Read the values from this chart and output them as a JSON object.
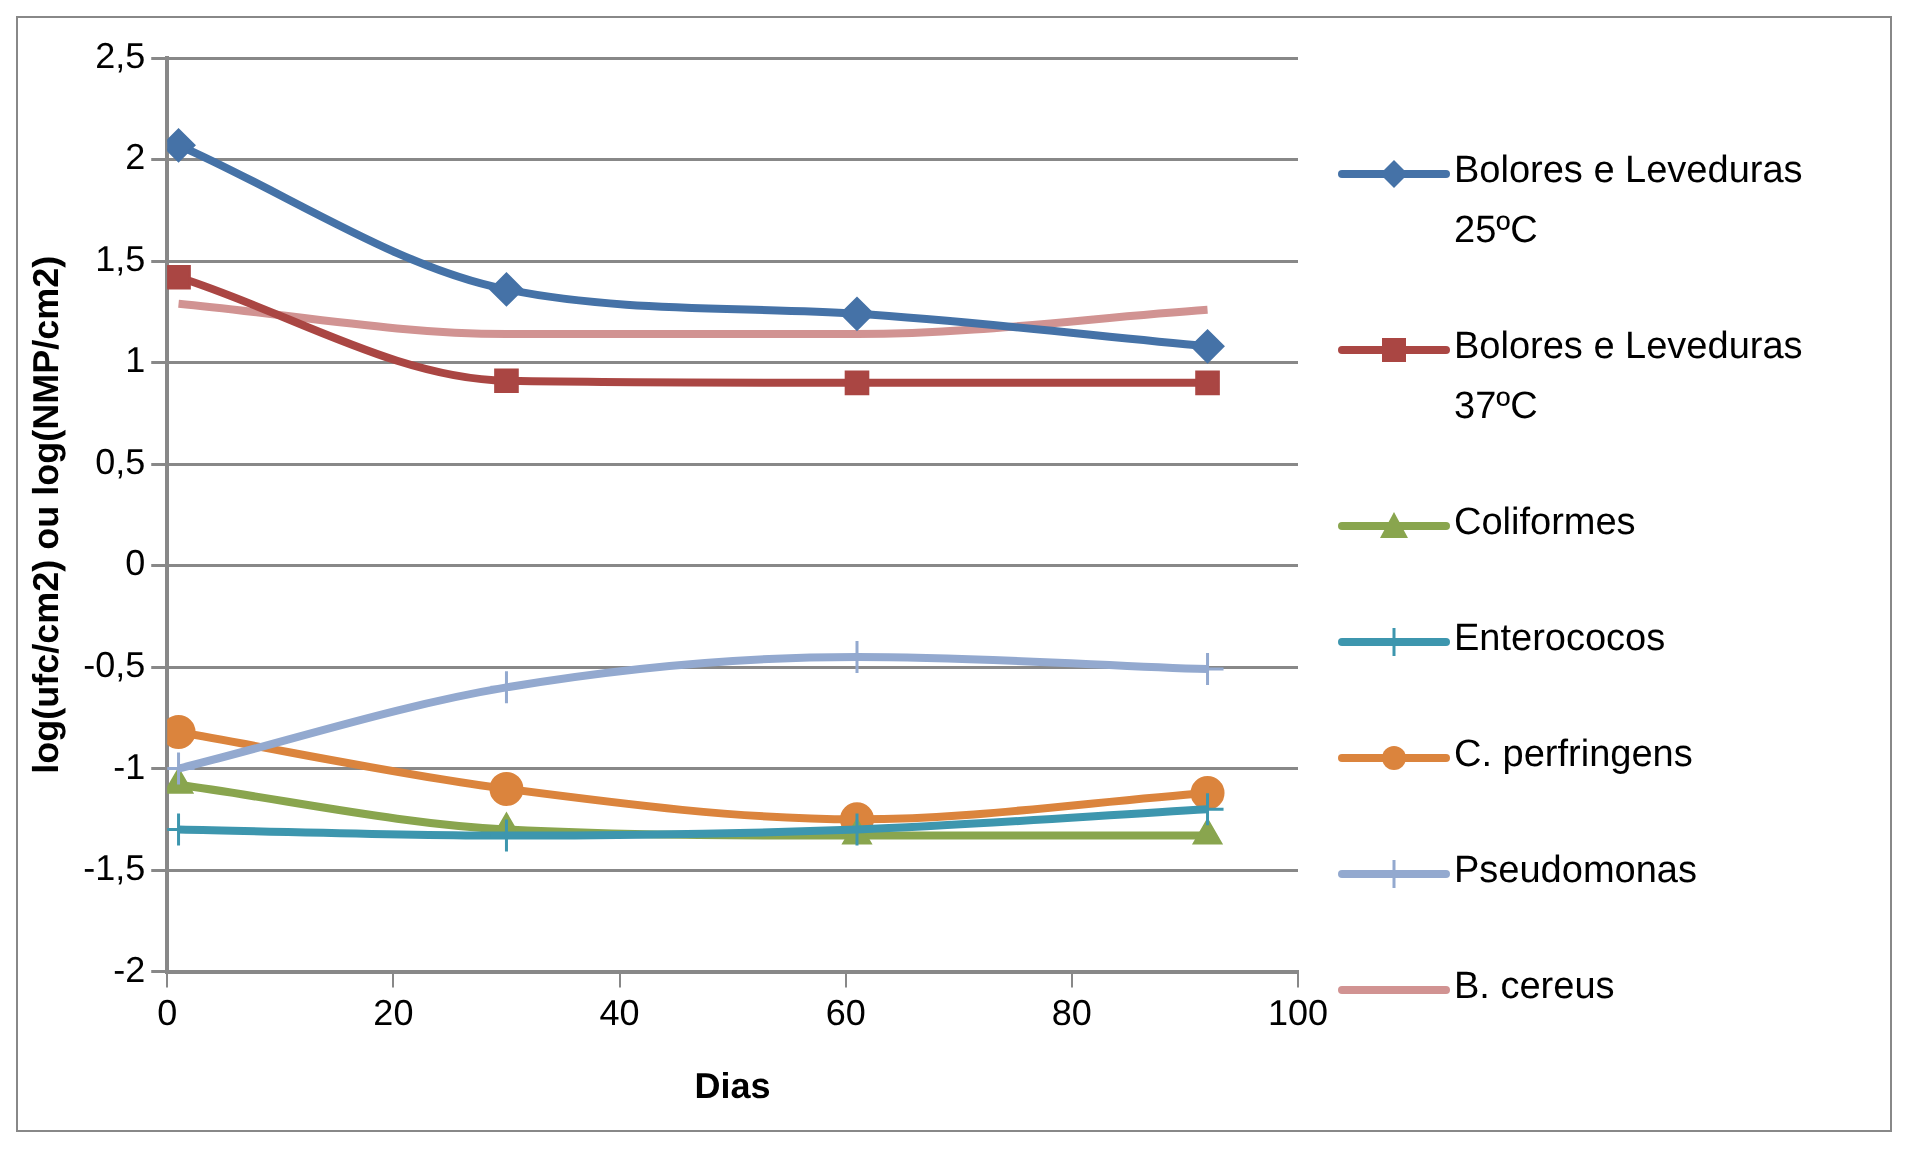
{
  "chart_data": {
    "type": "line",
    "xlabel": "Dias",
    "ylabel": "log(ufc/cm2) ou log(NMP/cm2)",
    "x": [
      1,
      30,
      61,
      92
    ],
    "xlim": [
      0,
      100
    ],
    "xticks": [
      0,
      20,
      40,
      60,
      80,
      100
    ],
    "ylim": [
      -2,
      2.5
    ],
    "yticks": [
      {
        "value": -2,
        "label": "-2"
      },
      {
        "value": -1.5,
        "label": "-1,5"
      },
      {
        "value": -1,
        "label": "-1"
      },
      {
        "value": -0.5,
        "label": "-0,5"
      },
      {
        "value": 0,
        "label": "0"
      },
      {
        "value": 0.5,
        "label": "0,5"
      },
      {
        "value": 1,
        "label": "1"
      },
      {
        "value": 1.5,
        "label": "1,5"
      },
      {
        "value": 2,
        "label": "2"
      },
      {
        "value": 2.5,
        "label": "2,5"
      }
    ],
    "grid": "y",
    "legend": "right",
    "series": [
      {
        "name": "Bolores e Leveduras 25ºC",
        "color": "#4572a7",
        "marker": "diamond",
        "values": [
          2.07,
          1.36,
          1.24,
          1.08
        ]
      },
      {
        "name": "Bolores e Leveduras 37ºC",
        "color": "#aa4643",
        "marker": "square",
        "values": [
          1.42,
          0.91,
          0.9,
          0.9
        ]
      },
      {
        "name": "Coliformes",
        "color": "#89a54e",
        "marker": "triangle",
        "values": [
          -1.08,
          -1.3,
          -1.33,
          -1.33
        ]
      },
      {
        "name": "Enterococos",
        "color": "#3d96ae",
        "marker": "cross",
        "values": [
          -1.3,
          -1.33,
          -1.3,
          -1.2
        ]
      },
      {
        "name": "C. perfringens",
        "color": "#db843d",
        "marker": "circle",
        "values": [
          -0.82,
          -1.1,
          -1.25,
          -1.12
        ]
      },
      {
        "name": "Pseudomonas",
        "color": "#93a9cf",
        "marker": "cross",
        "values": [
          -1.0,
          -0.6,
          -0.45,
          -0.51
        ]
      },
      {
        "name": "B. cereus",
        "color": "#d19392",
        "marker": "none",
        "values": [
          1.29,
          1.14,
          1.14,
          1.26
        ]
      }
    ]
  }
}
